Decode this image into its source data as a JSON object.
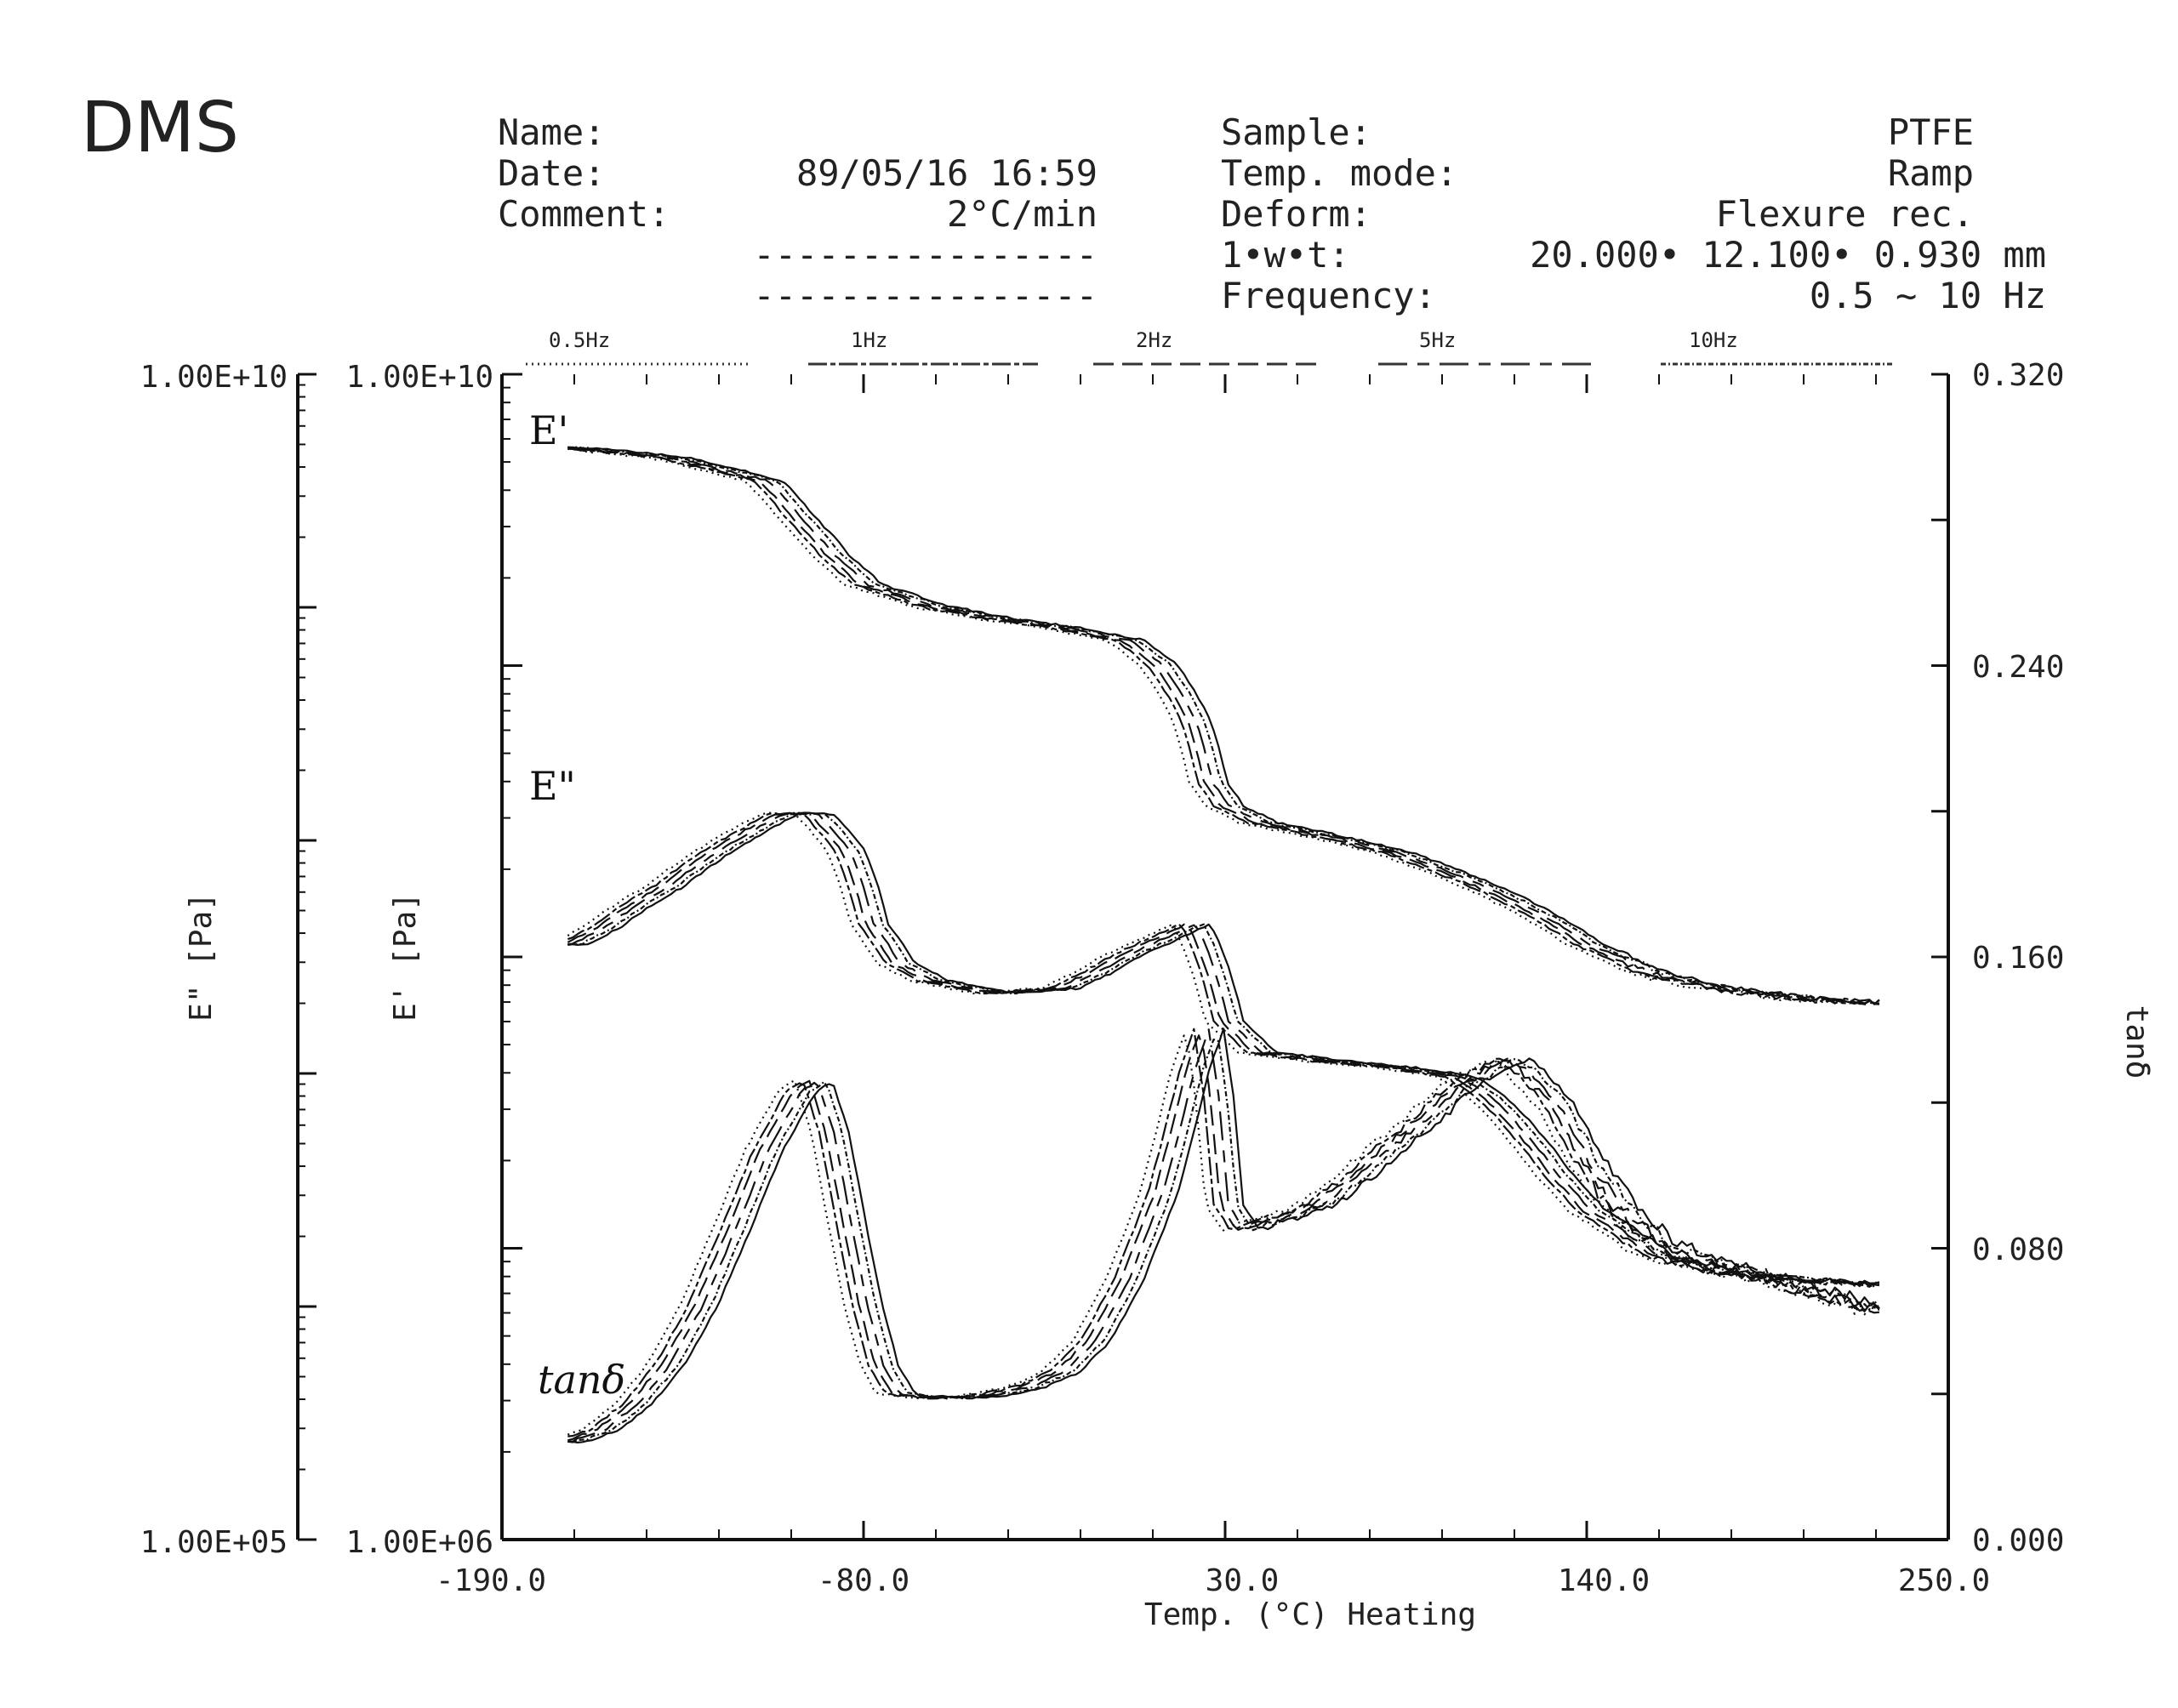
{
  "header": {
    "title": "DMS",
    "name_label": "Name:",
    "date_label": "Date:",
    "date_value": "89/05/16 16:59",
    "comment_label": "Comment:",
    "comment_value": "2°C/min",
    "dash_line_1": "----------------",
    "dash_line_2": "----------------",
    "sample_label": "Sample:",
    "sample_value": "PTFE",
    "temp_mode_label": "Temp. mode:",
    "temp_mode_value": "Ramp",
    "deform_label": "Deform:",
    "deform_value": "Flexure rec.",
    "dims_label": "1•w•t:",
    "dims_value": "20.000• 12.100•  0.930 mm",
    "frequency_label": "Frequency:",
    "frequency_value": "0.5 ~   10 Hz"
  },
  "chart_data": {
    "type": "line",
    "title": "DMS",
    "xlabel": "Temp. (°C) Heating",
    "xlim": [
      -190,
      250
    ],
    "x_ticks": [
      "-190.0",
      "-80.0",
      "30.0",
      "140.0",
      "250.0"
    ],
    "y_left_outer": {
      "label": "E\" [Pa]",
      "top": "1.00E+10",
      "bottom": "1.00E+05",
      "ylim": [
        100000,
        10000000000
      ],
      "scale": "log"
    },
    "y_left_inner": {
      "label": "E' [Pa]",
      "top": "1.00E+10",
      "bottom": "1.00E+06",
      "ylim": [
        1000000,
        10000000000
      ],
      "scale": "log"
    },
    "y_right": {
      "label": "tanδ",
      "ylim": [
        0,
        0.32
      ],
      "ticks": [
        "0.000",
        "0.080",
        "0.160",
        "0.240",
        "0.320"
      ]
    },
    "frequencies": [
      "0.5Hz",
      "1Hz",
      "2Hz",
      "5Hz",
      "10Hz"
    ],
    "curve_labels": [
      "E'",
      "E\"",
      "tanδ"
    ],
    "series": [
      {
        "name": "E'",
        "axis": "y_left_inner",
        "x": [
          -170,
          -140,
          -110,
          -100,
          -90,
          -80,
          -60,
          -40,
          -20,
          0,
          10,
          20,
          25,
          30,
          40,
          60,
          80,
          100,
          120,
          140,
          160,
          180,
          200,
          220,
          230
        ],
        "y": [
          5600000000.0,
          5200000000.0,
          4300000000.0,
          3200000000.0,
          2400000000.0,
          1900000000.0,
          1600000000.0,
          1450000000.0,
          1350000000.0,
          1220000000.0,
          1000000000.0,
          650000000.0,
          400000000.0,
          330000000.0,
          290000000.0,
          260000000.0,
          230000000.0,
          190000000.0,
          150000000.0,
          110000000.0,
          87000000.0,
          78000000.0,
          73000000.0,
          70000000.0,
          70000000.0
        ]
      },
      {
        "name": "E\"",
        "axis": "y_left_inner",
        "x": [
          -170,
          -160,
          -140,
          -120,
          -105,
          -95,
          -85,
          -78,
          -70,
          -60,
          -40,
          -20,
          -10,
          0,
          10,
          20,
          23,
          30,
          40,
          60,
          80,
          100,
          110,
          120,
          130,
          140,
          160,
          180,
          200,
          220,
          230
        ],
        "y": [
          110000000.0,
          125000000.0,
          175000000.0,
          250000000.0,
          310000000.0,
          310000000.0,
          230000000.0,
          130000000.0,
          95000000.0,
          83000000.0,
          75000000.0,
          78000000.0,
          88000000.0,
          102000000.0,
          115000000.0,
          130000000.0,
          110000000.0,
          60000000.0,
          47000000.0,
          44000000.0,
          42000000.0,
          39000000.0,
          33000000.0,
          25000000.0,
          18000000.0,
          13500000.0,
          9500000.0,
          8300000.0,
          7900000.0,
          7600000.0,
          7500000.0
        ]
      },
      {
        "name": "tanδ",
        "axis": "y_right",
        "x": [
          -170,
          -160,
          -150,
          -140,
          -130,
          -120,
          -110,
          -100,
          -95,
          -90,
          -85,
          -80,
          -75,
          -70,
          -60,
          -50,
          -40,
          -30,
          -20,
          -10,
          0,
          10,
          15,
          20,
          24,
          27,
          30,
          35,
          40,
          50,
          60,
          70,
          80,
          90,
          100,
          110,
          115,
          120,
          130,
          140,
          150,
          160,
          170,
          180,
          190,
          200,
          210,
          220,
          230
        ],
        "y": [
          0.027,
          0.03,
          0.037,
          0.048,
          0.064,
          0.085,
          0.107,
          0.123,
          0.126,
          0.112,
          0.088,
          0.065,
          0.048,
          0.04,
          0.039,
          0.039,
          0.04,
          0.042,
          0.046,
          0.055,
          0.072,
          0.095,
          0.112,
          0.13,
          0.14,
          0.122,
          0.092,
          0.085,
          0.087,
          0.089,
          0.093,
          0.1,
          0.108,
          0.115,
          0.124,
          0.129,
          0.132,
          0.13,
          0.12,
          0.104,
          0.091,
          0.083,
          0.078,
          0.075,
          0.073,
          0.07,
          0.068,
          0.065,
          0.063
        ]
      }
    ]
  }
}
